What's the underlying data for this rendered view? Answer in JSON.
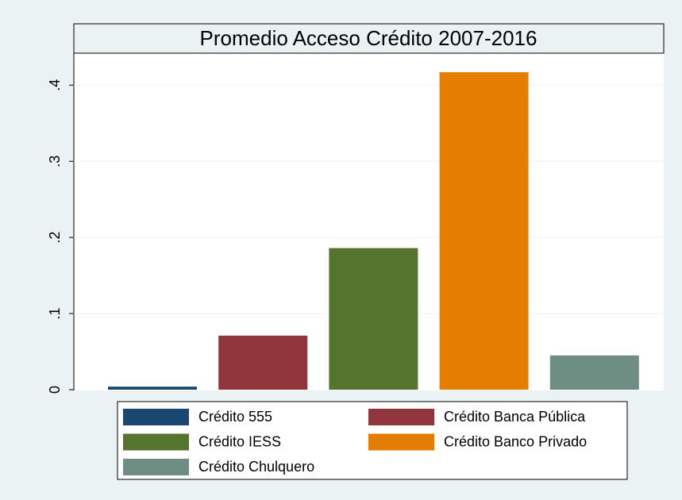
{
  "chart_data": {
    "type": "bar",
    "title": "Promedio Acceso Crédito 2007-2016",
    "series": [
      {
        "name": "Crédito 555",
        "color": "#1a476f",
        "values": [
          0.004
        ]
      },
      {
        "name": "Crédito Banca Pública",
        "color": "#90353b",
        "values": [
          0.071
        ]
      },
      {
        "name": "Crédito IESS",
        "color": "#55752f",
        "values": [
          0.186
        ]
      },
      {
        "name": "Crédito Banco Privado",
        "color": "#e37e00",
        "values": [
          0.417
        ]
      },
      {
        "name": "Crédito Chulquero",
        "color": "#6e8e84",
        "values": [
          0.045
        ]
      }
    ],
    "ylim": [
      0,
      0.442
    ],
    "yticks": [
      0,
      {
        "value": 0.1,
        "label": ".1"
      },
      {
        "value": 0.2,
        "label": ".2"
      },
      {
        "value": 0.3,
        "label": ".3"
      },
      {
        "value": 0.4,
        "label": ".4"
      }
    ],
    "grid": true
  }
}
